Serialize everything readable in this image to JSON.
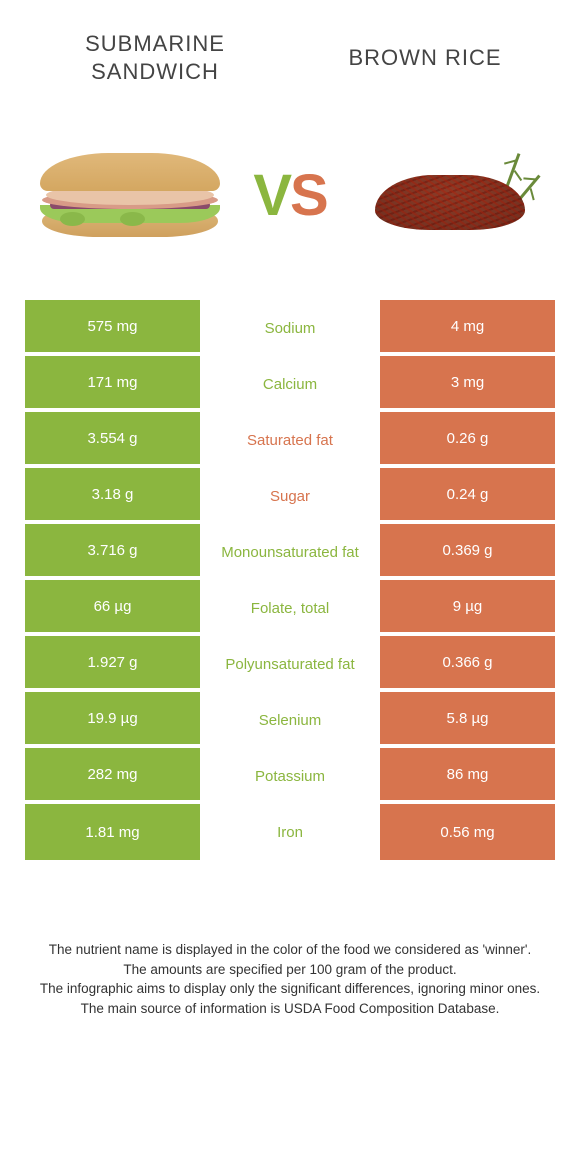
{
  "food1": {
    "title": "SUBMARINE SANDWICH",
    "color": "#8bb63f"
  },
  "food2": {
    "title": "BROWN RICE",
    "color": "#d7744e"
  },
  "vs": {
    "v_color": "#8bb63f",
    "s_color": "#d7744e"
  },
  "table": {
    "left_bg": "#8bb63f",
    "right_bg": "#d7744e",
    "row_gap_color": "#ffffff",
    "cell_text_color": "#ffffff",
    "rows": [
      {
        "left": "575 mg",
        "label": "Sodium",
        "right": "4 mg",
        "label_color": "#8bb63f"
      },
      {
        "left": "171 mg",
        "label": "Calcium",
        "right": "3 mg",
        "label_color": "#8bb63f"
      },
      {
        "left": "3.554 g",
        "label": "Saturated fat",
        "right": "0.26 g",
        "label_color": "#d7744e"
      },
      {
        "left": "3.18 g",
        "label": "Sugar",
        "right": "0.24 g",
        "label_color": "#d7744e"
      },
      {
        "left": "3.716 g",
        "label": "Monounsaturated fat",
        "right": "0.369 g",
        "label_color": "#8bb63f"
      },
      {
        "left": "66 µg",
        "label": "Folate, total",
        "right": "9 µg",
        "label_color": "#8bb63f"
      },
      {
        "left": "1.927 g",
        "label": "Polyunsaturated fat",
        "right": "0.366 g",
        "label_color": "#8bb63f"
      },
      {
        "left": "19.9 µg",
        "label": "Selenium",
        "right": "5.8 µg",
        "label_color": "#8bb63f"
      },
      {
        "left": "282 mg",
        "label": "Potassium",
        "right": "86 mg",
        "label_color": "#8bb63f"
      },
      {
        "left": "1.81 mg",
        "label": "Iron",
        "right": "0.56 mg",
        "label_color": "#8bb63f"
      }
    ]
  },
  "footer": {
    "line1": "The nutrient name is displayed in the color of the food we considered as 'winner'.",
    "line2": "The amounts are specified per 100 gram of the product.",
    "line3": "The infographic aims to display only the significant differences, ignoring minor ones.",
    "line4": "The main source of information is USDA Food Composition Database."
  }
}
